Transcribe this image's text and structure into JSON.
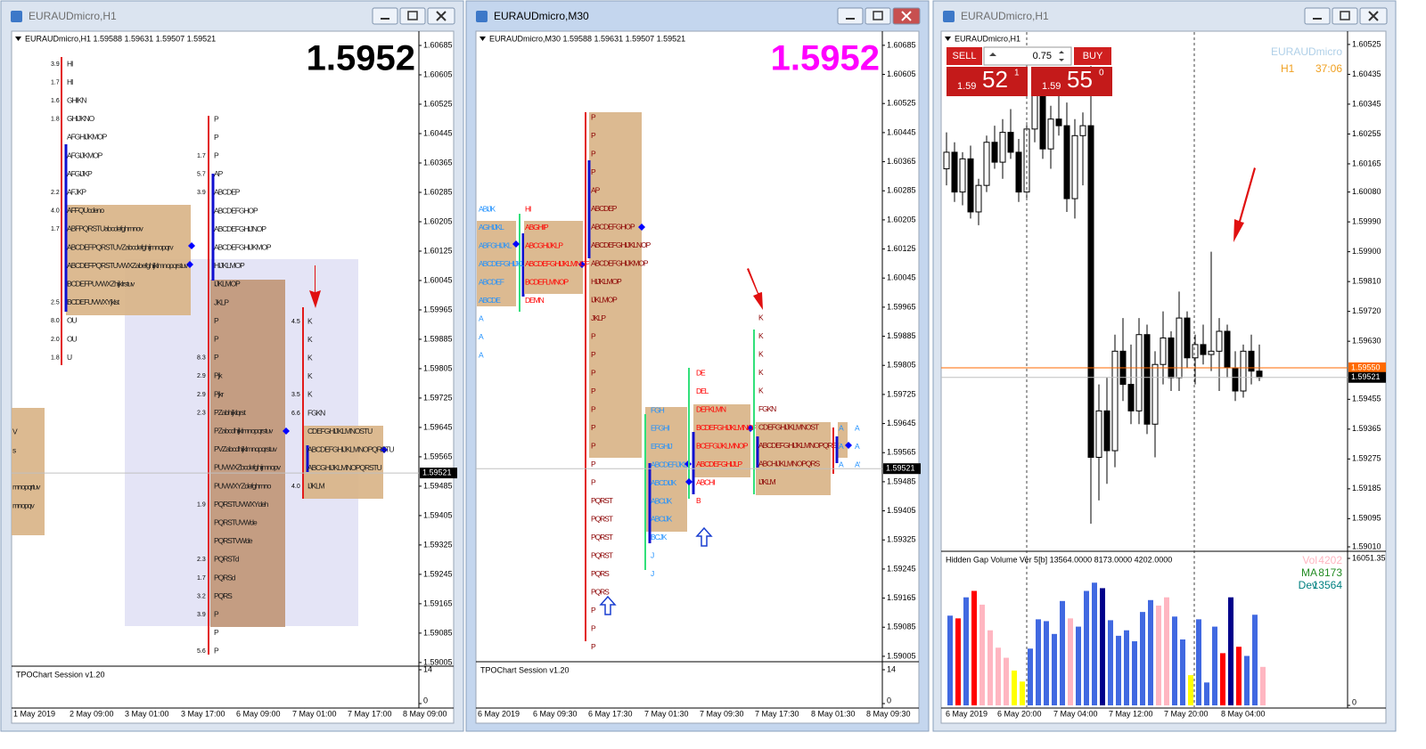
{
  "windows": [
    {
      "title": "EURAUDmicro,H1",
      "chart_header": "EURAUDmicro,H1  1.59588 1.59631 1.59507 1.59521",
      "big_price": "1.5952",
      "big_price_color": "#000000",
      "ylim": [
        1.58995,
        1.60719
      ],
      "yticks": [
        1.60685,
        1.60605,
        1.60525,
        1.60445,
        1.60365,
        1.60285,
        1.60205,
        1.60125,
        1.60045,
        1.59965,
        1.59885,
        1.59805,
        1.59725,
        1.59645,
        1.59565,
        1.59485,
        1.59405,
        1.59325,
        1.59245,
        1.59165,
        1.59085,
        1.59005
      ],
      "current_price": 1.59521,
      "indicator": {
        "label": "TPOChart Session v1.20",
        "ylim": [
          0,
          14
        ],
        "yticks": [
          14,
          0
        ]
      },
      "dates": [
        "1 May 2019",
        "2 May 09:00",
        "3 May 01:00",
        "3 May 17:00",
        "6 May 09:00",
        "7 May 01:00",
        "7 May 17:00",
        "8 May 09:00"
      ],
      "profiles": [
        {
          "color": "#1a1a1a",
          "rows": [
            "V",
            "s",
            "mnopqrtuv",
            "mnopqv"
          ]
        },
        {
          "color": "#1a1a1a",
          "rows": [
            "HI",
            "HI",
            "GHIKN",
            "GHIJKNO",
            "AFGHIJKMOP",
            "AFGIJKMOP",
            "AFGIJKP",
            "AFJKP",
            "AFFQUcdeno",
            "ABFPQRSTUabcdefghmnov",
            "ABCDEFPQRSTUVZabcdefghijmnopqrv",
            "ABCDEFPQRSTUVWXZabefghijklmnopqrstuv",
            "BCDEFPUVWXZhijklrstuv",
            "BCDEFUVWXYjklst",
            "OU",
            "OU",
            "U"
          ],
          "counts": [
            "3.9",
            "1.7",
            "1.6",
            "1.8",
            null,
            null,
            null,
            "2.2",
            "4.0",
            "1.7",
            null,
            null,
            null,
            "2.5",
            "8.0",
            "2.0",
            "1.8"
          ]
        },
        {
          "color": "#1a1a1a",
          "rows": [
            "P",
            "P",
            "P",
            "AP",
            "ABCDEP",
            "ABCDEFGHOP",
            "ABCDEFGHIJNOP",
            "ABCDEFGHIJKMOP",
            "HIJKLMOP",
            "IJKLMOP",
            "JKLP",
            "P",
            "P",
            "P",
            "Pjk",
            "Pjkr",
            "PZabhijklqrst",
            "PZabcdhijklmnopqrstuv",
            "PVZabcdhijklmnopqrstuv",
            "PUVWXZbcdefghijmnopv",
            "PUVWXYZdefghmno",
            "PQRSTUVWXYdeh",
            "PQRSTUVWde",
            "PQRSTVWde",
            "PQRSTd",
            "PQRSd",
            "PQRS",
            "P",
            "P",
            "P"
          ],
          "counts": [
            null,
            null,
            "1.7",
            "5.7",
            "3.9",
            null,
            null,
            null,
            null,
            null,
            null,
            null,
            null,
            "8.3",
            "2.9",
            "2.9",
            "2.3",
            null,
            null,
            null,
            null,
            "1.9",
            null,
            null,
            "2.3",
            "1.7",
            "3.2",
            "3.9",
            null,
            "5.6"
          ]
        },
        {
          "color": "#1a1a1a",
          "rows": [
            "K",
            "K",
            "K",
            "K",
            "K",
            "FGKN",
            "CDEFGHIJKLMNOSTU",
            "ABCDEFGHIJKLMNOPQRSTU",
            "ABCGHIJKLMNOPQRSTU",
            "IJKLM"
          ],
          "counts": [
            "4.5",
            null,
            null,
            null,
            "3.5",
            "6.6",
            null,
            null,
            null,
            "4.0"
          ]
        }
      ]
    },
    {
      "title": "EURAUDmicro,M30",
      "chart_header": "EURAUDmicro,M30  1.59588 1.59631 1.59507 1.59521",
      "big_price": "1.5952",
      "big_price_color": "#ff00ff",
      "ylim": [
        1.58995,
        1.60719
      ],
      "yticks": [
        1.60685,
        1.60605,
        1.60525,
        1.60445,
        1.60365,
        1.60285,
        1.60205,
        1.60125,
        1.60045,
        1.59965,
        1.59885,
        1.59805,
        1.59725,
        1.59645,
        1.59565,
        1.59485,
        1.59405,
        1.59325,
        1.59245,
        1.59165,
        1.59085,
        1.59005
      ],
      "current_price": 1.59521,
      "indicator": {
        "label": "TPOChart Session v1.20",
        "ylim": [
          0,
          14
        ],
        "yticks": [
          14,
          0
        ]
      },
      "dates": [
        "6 May 2019",
        "6 May 09:30",
        "6 May 17:30",
        "7 May 01:30",
        "7 May 09:30",
        "7 May 17:30",
        "8 May 01:30",
        "8 May 09:30"
      ],
      "profiles": [
        {
          "color": "#1e90ff",
          "rows": [
            "ABIJK",
            "AGHIJKL",
            "ABFGHIJKL",
            "ABCDEFGHIJKL",
            "ABCDEF",
            "ABCDE",
            "A",
            "A",
            "A"
          ]
        },
        {
          "color": "#ff0000",
          "rows": [
            "HI",
            "ABGHIP",
            "ABCGHIJKLP",
            "ABCDEFGHIJKLMNOP",
            "BCDEFLMNOP",
            "DEMN"
          ]
        },
        {
          "color": "#8b0000",
          "rows": [
            "P",
            "P",
            "P",
            "P",
            "AP",
            "ABCDEP",
            "ABCDEFGHOP",
            "ABCDEFGHIJKLNOP",
            "ABCDEFGHIJKMOP",
            "HIJKLMOP",
            "IJKLMOP",
            "JKLP",
            "P",
            "P",
            "P",
            "P",
            "P",
            "P",
            "P",
            "P",
            "P",
            "PQRST",
            "PQRST",
            "PQRST",
            "PQRST",
            "PQRS",
            "PQRS",
            "P",
            "P",
            "P"
          ]
        },
        {
          "color": "#1e90ff",
          "rows": [
            "FGH",
            "EFGHI",
            "EFGHIJ",
            "ABCDEFIJKL",
            "ABCDIJK",
            "ABCIJK",
            "ABCIJK",
            "BCJK",
            "J",
            "J"
          ]
        },
        {
          "color": "#ff0000",
          "rows": [
            "DE",
            "DEL",
            "DEFKLMN",
            "BCDEFGHIJKLMNOP",
            "BCEFGIJKLMNOP",
            "ABCDEFGHIJLP",
            "ABCHI",
            "B"
          ]
        },
        {
          "color": "#8b0000",
          "rows": [
            "K",
            "K",
            "K",
            "K",
            "K",
            "FGKN",
            "CDEFGHIJKLMNOST",
            "ABCDEFGHIJKLMNOPQRST",
            "ABCHIJKLMNOPQRS",
            "IJKLM"
          ]
        },
        {
          "color": "#1e90ff",
          "rows": [
            "A",
            "A",
            "A"
          ]
        },
        {
          "color": "#1e90ff",
          "rows": [
            "A",
            "A",
            "A'"
          ]
        }
      ]
    },
    {
      "title": "EURAUDmicro,H1",
      "chart_header": "EURAUDmicro,H1",
      "ylim": [
        1.59002,
        1.60557
      ],
      "yticks": [
        1.60525,
        1.60435,
        1.60345,
        1.60255,
        1.60165,
        {
          "value": 1.6008,
          "label": "1.60080"
        },
        {
          "value": 1.5999,
          "label": "1.59990"
        },
        {
          "value": 1.599,
          "label": "1.59900"
        },
        {
          "value": 1.5981,
          "label": "1.59810"
        },
        {
          "value": 1.5972,
          "label": "1.59720"
        },
        {
          "value": 1.5963,
          "label": "1.59630"
        },
        1.59455,
        1.59365,
        1.59275,
        1.59185,
        1.59095,
        {
          "value": 1.5901,
          "label": "1.59010"
        }
      ],
      "current_price": 1.59521,
      "level_line": {
        "value": 1.5955,
        "label": "1.59550",
        "color": "#ff6a00"
      },
      "dates": [
        "6 May 2019",
        "6 May 20:00",
        "7 May 04:00",
        "7 May 12:00",
        "7 May 20:00",
        "8 May 04:00"
      ],
      "symbol_label": "EURAUDmicro",
      "timeframe_label": "H1",
      "timer": "37:06",
      "trade": {
        "sell": "SELL",
        "buy": "BUY",
        "lot": "0.75",
        "bid": {
          "big": "1.59",
          "main": "52",
          "fraction": "1"
        },
        "ask": {
          "big": "1.59",
          "main": "55",
          "fraction": "0"
        }
      },
      "bull_color": "#ffffff",
      "bear_color": "#000000",
      "candles": [
        [
          1.6015,
          1.6026,
          1.601,
          1.602
        ],
        [
          1.602,
          1.6023,
          1.6005,
          1.6008
        ],
        [
          1.6008,
          1.602,
          1.6004,
          1.6018
        ],
        [
          1.6018,
          1.6022,
          1.6,
          1.6002
        ],
        [
          1.6002,
          1.6012,
          1.5998,
          1.601
        ],
        [
          1.601,
          1.6025,
          1.6008,
          1.6023
        ],
        [
          1.6023,
          1.6028,
          1.6015,
          1.6017
        ],
        [
          1.6017,
          1.603,
          1.6012,
          1.6026
        ],
        [
          1.6026,
          1.6033,
          1.6018,
          1.602
        ],
        [
          1.602,
          1.6024,
          1.6005,
          1.6008
        ],
        [
          1.6008,
          1.6029,
          1.6006,
          1.6027
        ],
        [
          1.6027,
          1.6042,
          1.6023,
          1.6038
        ],
        [
          1.6038,
          1.604,
          1.6018,
          1.6021
        ],
        [
          1.6021,
          1.6034,
          1.6015,
          1.603
        ],
        [
          1.603,
          1.6045,
          1.6025,
          1.6028
        ],
        [
          1.6028,
          1.6035,
          1.6002,
          1.6006
        ],
        [
          1.6006,
          1.603,
          1.6,
          1.6025
        ],
        [
          1.6025,
          1.6032,
          1.601,
          1.6028
        ],
        [
          1.6028,
          1.6046,
          1.5908,
          1.5928
        ],
        [
          1.5928,
          1.595,
          1.5915,
          1.5942
        ],
        [
          1.5942,
          1.5952,
          1.592,
          1.593
        ],
        [
          1.593,
          1.5965,
          1.5925,
          1.596
        ],
        [
          1.596,
          1.597,
          1.5945,
          1.595
        ],
        [
          1.595,
          1.5962,
          1.5938,
          1.5942
        ],
        [
          1.5942,
          1.597,
          1.5938,
          1.5965
        ],
        [
          1.5965,
          1.5968,
          1.5935,
          1.5938
        ],
        [
          1.5938,
          1.596,
          1.5928,
          1.5956
        ],
        [
          1.5956,
          1.5972,
          1.595,
          1.5964
        ],
        [
          1.5964,
          1.5966,
          1.5948,
          1.5952
        ],
        [
          1.5952,
          1.5978,
          1.5948,
          1.597
        ],
        [
          1.597,
          1.5972,
          1.5955,
          1.5958
        ],
        [
          1.5958,
          1.5965,
          1.595,
          1.5962
        ],
        [
          1.5962,
          1.5968,
          1.5956,
          1.5959
        ],
        [
          1.5959,
          1.599,
          1.5954,
          1.596
        ],
        [
          1.596,
          1.597,
          1.5948,
          1.5966
        ],
        [
          1.5966,
          1.5968,
          1.5952,
          1.5955
        ],
        [
          1.5955,
          1.596,
          1.5945,
          1.5948
        ],
        [
          1.5948,
          1.5962,
          1.5946,
          1.596
        ],
        [
          1.596,
          1.5965,
          1.595,
          1.5954
        ],
        [
          1.5954,
          1.5962,
          1.5951,
          1.59521
        ]
      ],
      "indicator": {
        "label": "Hidden Gap Volume Ver 5[b] 13564.0000 8173.0000 4202.0000",
        "ylim": [
          0,
          16051.35
        ],
        "yticks": [
          16051.35,
          0
        ],
        "legend": [
          {
            "name": "Vol",
            "value": 4202,
            "color": "#ffb6c1"
          },
          {
            "name": "MA",
            "value": 8173,
            "color": "#228b22"
          },
          {
            "name": "Dev",
            "value": 13564,
            "color": "#008080"
          }
        ],
        "values": [
          9800,
          9500,
          11800,
          12500,
          11000,
          8200,
          6300,
          5200,
          3800,
          2600,
          6200,
          9400,
          9200,
          7800,
          11400,
          9500,
          8600,
          12500,
          13400,
          12800,
          9300,
          7600,
          8200,
          7000,
          10200,
          11500,
          10900,
          11800,
          9700,
          7200,
          3300,
          9400,
          2500,
          8600,
          5700,
          11800,
          6400,
          5400,
          9900,
          4202
        ],
        "colors": [
          "#4169e1",
          "#ff0000",
          "#4169e1",
          "#ff0000",
          "#ffb6c1",
          "#ffb6c1",
          "#ffb6c1",
          "#ffb6c1",
          "#ffff00",
          "#ffff00",
          "#4169e1",
          "#4169e1",
          "#4169e1",
          "#4169e1",
          "#4169e1",
          "#ffb6c1",
          "#4169e1",
          "#4169e1",
          "#4169e1",
          "#00008b",
          "#4169e1",
          "#4169e1",
          "#4169e1",
          "#4169e1",
          "#4169e1",
          "#4169e1",
          "#ffb6c1",
          "#ffb6c1",
          "#4169e1",
          "#4169e1",
          "#ffff00",
          "#4169e1",
          "#4169e1",
          "#4169e1",
          "#ff0000",
          "#00008b",
          "#ff0000",
          "#4169e1",
          "#4169e1",
          "#ffb6c1"
        ]
      }
    }
  ]
}
